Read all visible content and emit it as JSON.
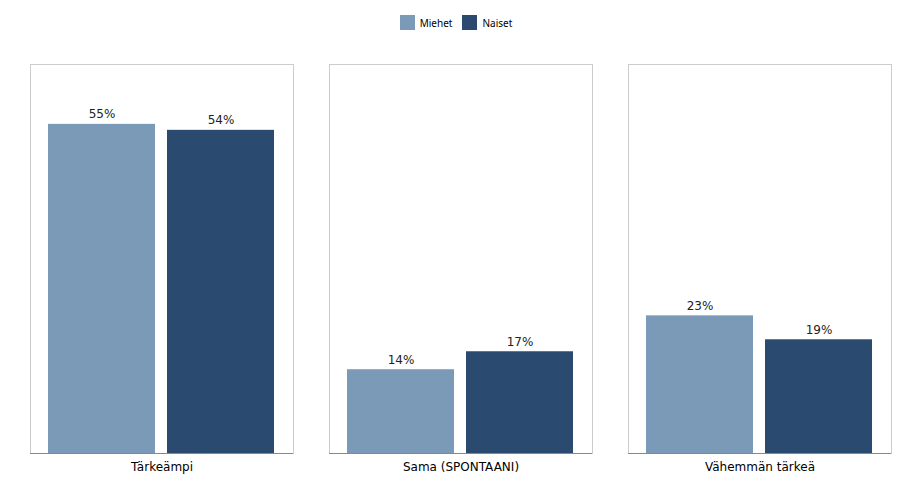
{
  "chart_data": {
    "type": "bar",
    "categories": [
      "Tärkeämpi",
      "Sama (SPONTAANI)",
      "Vähemmän tärkeä"
    ],
    "series": [
      {
        "name": "Miehet",
        "color": "#7a9ab8",
        "values": [
          55,
          14,
          23
        ],
        "value_labels": [
          "55%",
          "14%",
          "23%"
        ]
      },
      {
        "name": "Naiset",
        "color": "#2a4a70",
        "values": [
          54,
          17,
          19
        ],
        "value_labels": [
          "54%",
          "17%",
          "19%"
        ]
      }
    ],
    "ylim": [
      0,
      65
    ],
    "tick_labels": "x",
    "data_labels": true,
    "legend": "top",
    "grid": false
  }
}
